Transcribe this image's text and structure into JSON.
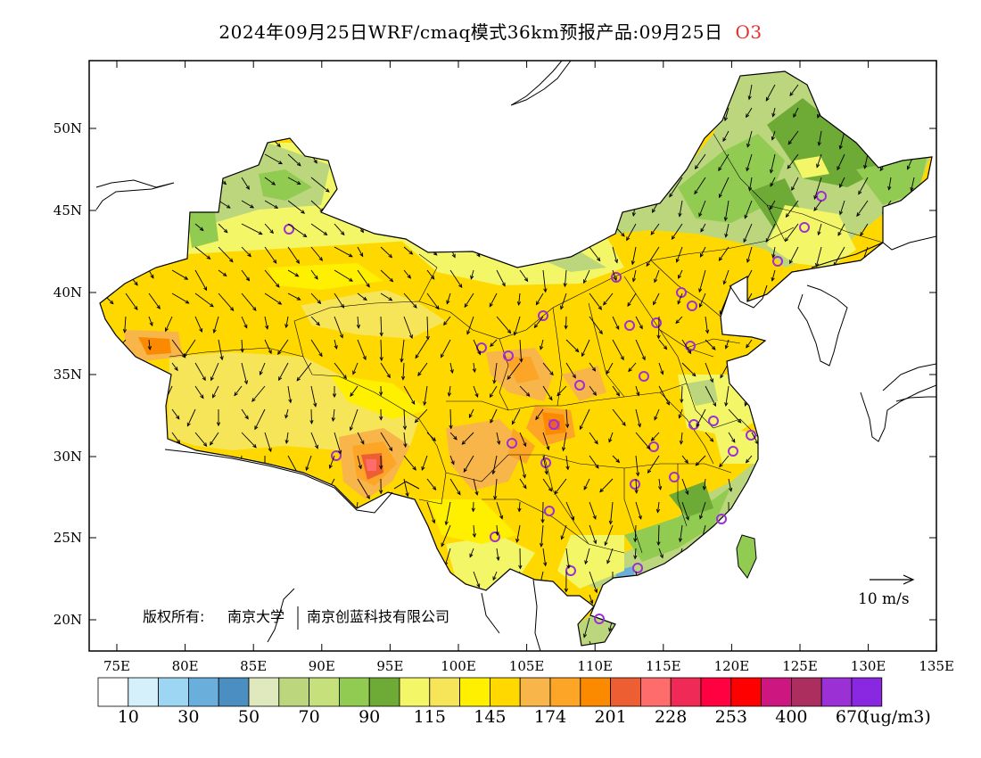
{
  "title": {
    "main": "2024年09月25日WRF/cmaq模式36km预报产品:09月25日",
    "pollutant": "O3"
  },
  "map": {
    "lat_labels": [
      "50N",
      "45N",
      "40N",
      "35N",
      "30N",
      "25N",
      "20N"
    ],
    "lon_labels": [
      "75E",
      "80E",
      "85E",
      "90E",
      "95E",
      "100E",
      "105E",
      "110E",
      "115E",
      "120E",
      "125E",
      "130E",
      "135E"
    ],
    "copyright_label": "版权所有:",
    "copyright_org1": "南京大学",
    "copyright_org2": "南京创蓝科技有限公司",
    "wind_scale_label": "10 m/s"
  },
  "legend": {
    "colors": [
      "#ffffff",
      "#d6f0fb",
      "#9cd6f2",
      "#6aaedb",
      "#4a8ec2",
      "#dfe9bd",
      "#bcd67e",
      "#c6e07c",
      "#92cb52",
      "#6eaa36",
      "#f2f667",
      "#f6e459",
      "#fff000",
      "#ffd800",
      "#f7b54a",
      "#fca527",
      "#fb8a00",
      "#ee5e33",
      "#ff6c6c",
      "#f02a56",
      "#ff0040",
      "#ff0000",
      "#cd1680",
      "#ab2e5f",
      "#9b30d4",
      "#8a27e0"
    ],
    "labels": [
      "10",
      "30",
      "50",
      "70",
      "90",
      "115",
      "145",
      "174",
      "201",
      "228",
      "253",
      "400",
      "670"
    ],
    "unit": "(ug/m3)"
  }
}
